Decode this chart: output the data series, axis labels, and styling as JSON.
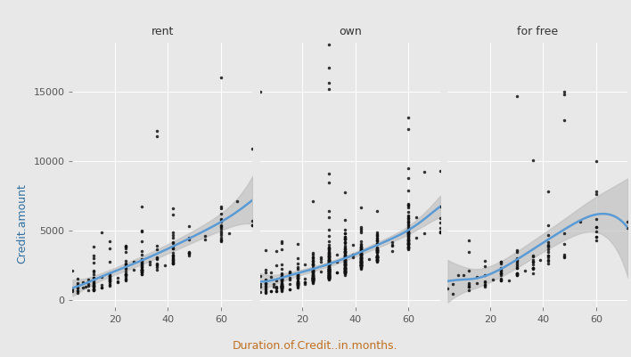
{
  "background_color": "#E8E8E8",
  "panel_background": "#E8E8E8",
  "strip_background": "#C8C8C8",
  "grid_color": "#FFFFFF",
  "smooth_color": "#5B9BD5",
  "smooth_lw": 1.8,
  "ci_color": "#BBBBBB",
  "ci_alpha": 0.6,
  "point_color": "#111111",
  "point_size": 2.5,
  "point_alpha": 0.85,
  "label_fontsize": 9,
  "tick_fontsize": 8,
  "strip_fontsize": 9,
  "xlabel": "Duration.of.Credit..in.months.",
  "ylabel": "Credit.amount",
  "xlabel_color": "#C07020",
  "ylabel_color": "#3070A0",
  "facets": [
    "rent",
    "own",
    "for free"
  ],
  "ylim": [
    -500,
    18500
  ],
  "xlim": [
    4,
    72
  ],
  "yticks": [
    0,
    5000,
    10000,
    15000
  ],
  "xticks": [
    20,
    40,
    60
  ],
  "yticklabels": [
    "0",
    "5000",
    "10000",
    "15000"
  ]
}
